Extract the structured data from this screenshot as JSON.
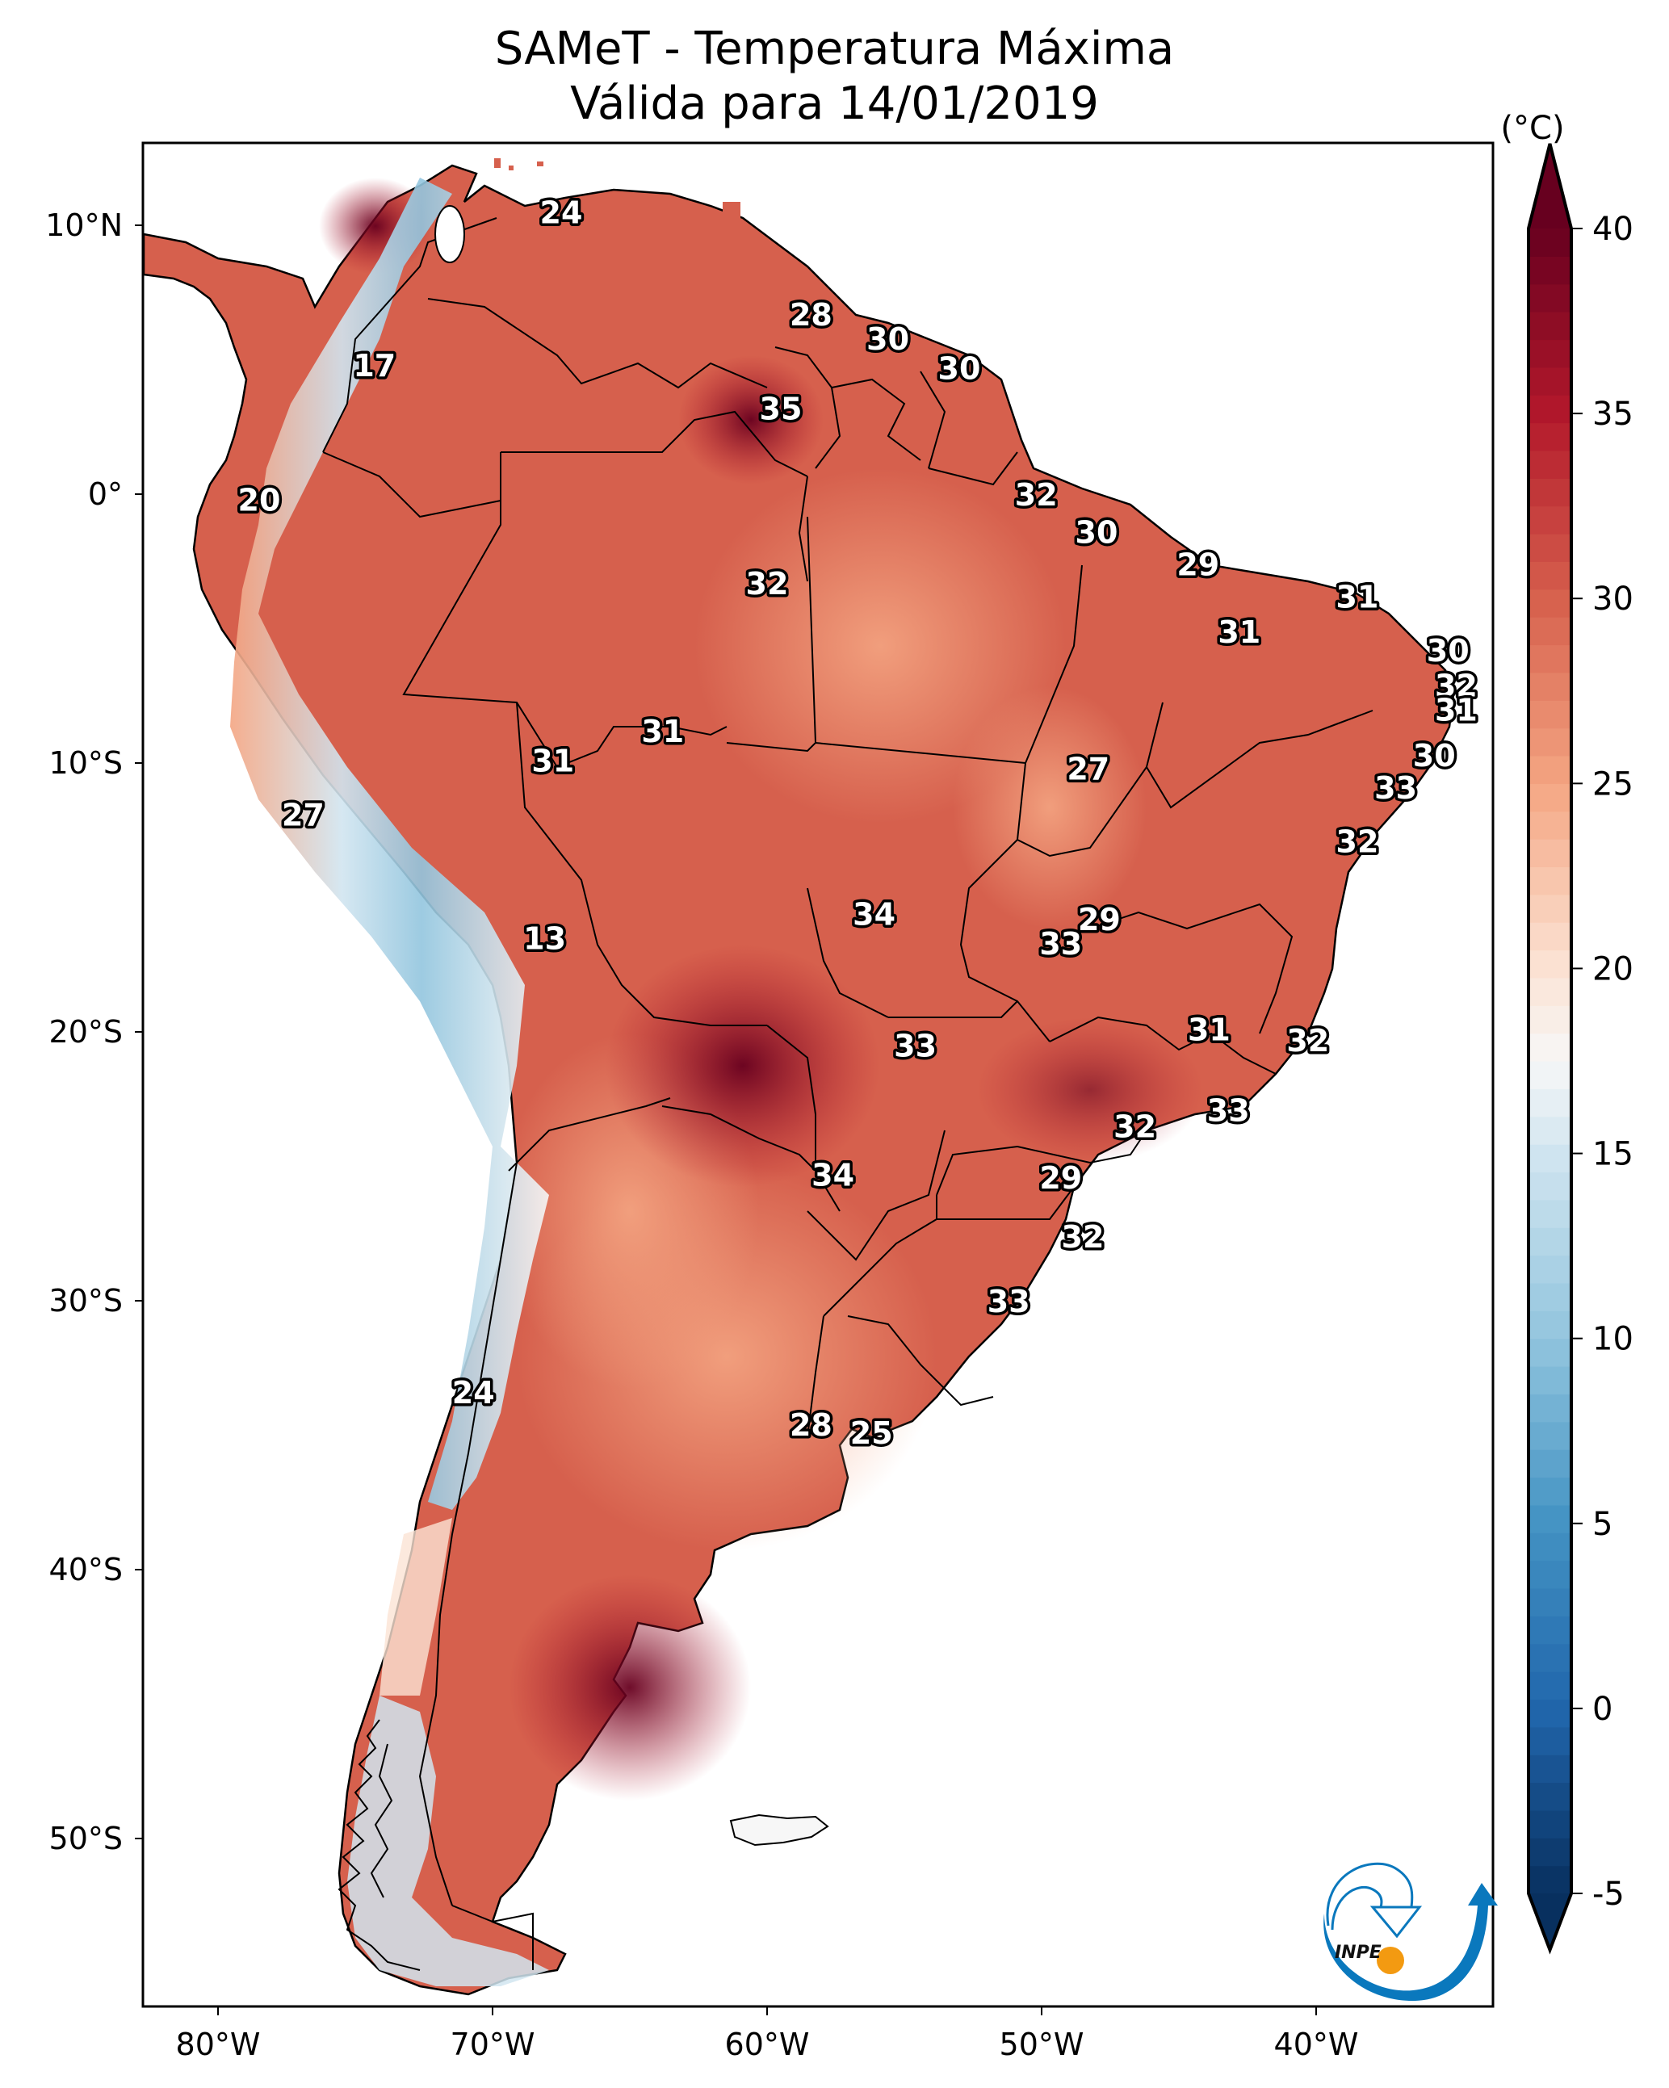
{
  "header": {
    "title_line1": "SAMeT - Temperatura Máxima",
    "title_line2": "Válida para 14/01/2019"
  },
  "chart_data": {
    "type": "heatmap",
    "title": "SAMeT - Temperatura Máxima",
    "subtitle": "Válida para 14/01/2019",
    "region": "South America",
    "xlabel": "",
    "ylabel": "",
    "xlim_lon": [
      -83,
      -33
    ],
    "ylim_lat": [
      -56,
      13
    ],
    "x_ticks": [
      {
        "value": -80,
        "label": "80°W"
      },
      {
        "value": -70,
        "label": "70°W"
      },
      {
        "value": -60,
        "label": "60°W"
      },
      {
        "value": -50,
        "label": "50°W"
      },
      {
        "value": -40,
        "label": "40°W"
      }
    ],
    "y_ticks": [
      {
        "value": 10,
        "label": "10°N"
      },
      {
        "value": 0,
        "label": "0°"
      },
      {
        "value": -10,
        "label": "10°S"
      },
      {
        "value": -20,
        "label": "20°S"
      },
      {
        "value": -30,
        "label": "30°S"
      },
      {
        "value": -40,
        "label": "40°S"
      },
      {
        "value": -50,
        "label": "50°S"
      }
    ],
    "colorbar": {
      "unit": "(°C)",
      "colormap": "RdBu_r",
      "range": [
        -5,
        40
      ],
      "extend": "both",
      "ticks": [
        40,
        35,
        30,
        25,
        20,
        15,
        10,
        5,
        0,
        -5
      ],
      "stops": [
        {
          "value": -5,
          "color": "#08305f"
        },
        {
          "value": 0,
          "color": "#2166ac"
        },
        {
          "value": 5,
          "color": "#4393c3"
        },
        {
          "value": 10,
          "color": "#92c5de"
        },
        {
          "value": 15,
          "color": "#d1e5f0"
        },
        {
          "value": 17.5,
          "color": "#f7f7f7"
        },
        {
          "value": 20,
          "color": "#fbe3d4"
        },
        {
          "value": 25,
          "color": "#f4a582"
        },
        {
          "value": 30,
          "color": "#d6604d"
        },
        {
          "value": 35,
          "color": "#b2182b"
        },
        {
          "value": 40,
          "color": "#67001f"
        }
      ]
    },
    "station_labels": [
      {
        "value": 24,
        "lon": -67.5,
        "lat": 10.5
      },
      {
        "value": 17,
        "lon": -74.3,
        "lat": 4.8
      },
      {
        "value": 28,
        "lon": -58.4,
        "lat": 6.7
      },
      {
        "value": 30,
        "lon": -55.6,
        "lat": 5.8
      },
      {
        "value": 30,
        "lon": -53.0,
        "lat": 4.7
      },
      {
        "value": 35,
        "lon": -59.5,
        "lat": 3.2
      },
      {
        "value": 20,
        "lon": -78.5,
        "lat": -0.2
      },
      {
        "value": 32,
        "lon": -50.2,
        "lat": 0.0
      },
      {
        "value": 30,
        "lon": -48.0,
        "lat": -1.4
      },
      {
        "value": 32,
        "lon": -60.0,
        "lat": -3.3
      },
      {
        "value": 29,
        "lon": -44.3,
        "lat": -2.6
      },
      {
        "value": 31,
        "lon": -38.5,
        "lat": -3.8
      },
      {
        "value": 31,
        "lon": -42.8,
        "lat": -5.1
      },
      {
        "value": 30,
        "lon": -35.2,
        "lat": -5.8
      },
      {
        "value": 32,
        "lon": -34.9,
        "lat": -7.1
      },
      {
        "value": 31,
        "lon": -34.9,
        "lat": -8.0
      },
      {
        "value": 31,
        "lon": -63.8,
        "lat": -8.8
      },
      {
        "value": 31,
        "lon": -67.8,
        "lat": -9.9
      },
      {
        "value": 30,
        "lon": -35.7,
        "lat": -9.7
      },
      {
        "value": 27,
        "lon": -48.3,
        "lat": -10.2
      },
      {
        "value": 33,
        "lon": -37.1,
        "lat": -10.9
      },
      {
        "value": 27,
        "lon": -76.9,
        "lat": -11.9
      },
      {
        "value": 32,
        "lon": -38.5,
        "lat": -12.9
      },
      {
        "value": 34,
        "lon": -56.1,
        "lat": -15.6
      },
      {
        "value": 29,
        "lon": -47.9,
        "lat": -15.8
      },
      {
        "value": 33,
        "lon": -49.3,
        "lat": -16.7
      },
      {
        "value": 13,
        "lon": -68.1,
        "lat": -16.5
      },
      {
        "value": 31,
        "lon": -43.9,
        "lat": -19.9
      },
      {
        "value": 32,
        "lon": -40.3,
        "lat": -20.3
      },
      {
        "value": 33,
        "lon": -54.6,
        "lat": -20.5
      },
      {
        "value": 33,
        "lon": -43.2,
        "lat": -22.9
      },
      {
        "value": 32,
        "lon": -46.6,
        "lat": -23.5
      },
      {
        "value": 34,
        "lon": -57.6,
        "lat": -25.3
      },
      {
        "value": 29,
        "lon": -49.3,
        "lat": -25.4
      },
      {
        "value": 32,
        "lon": -48.5,
        "lat": -27.6
      },
      {
        "value": 33,
        "lon": -51.2,
        "lat": -30.0
      },
      {
        "value": 24,
        "lon": -70.7,
        "lat": -33.4
      },
      {
        "value": 28,
        "lon": -58.4,
        "lat": -34.6
      },
      {
        "value": 25,
        "lon": -56.2,
        "lat": -34.9
      }
    ]
  },
  "logo": {
    "text": "INPE",
    "blue": "#0a78bd",
    "orange": "#f39a11"
  }
}
